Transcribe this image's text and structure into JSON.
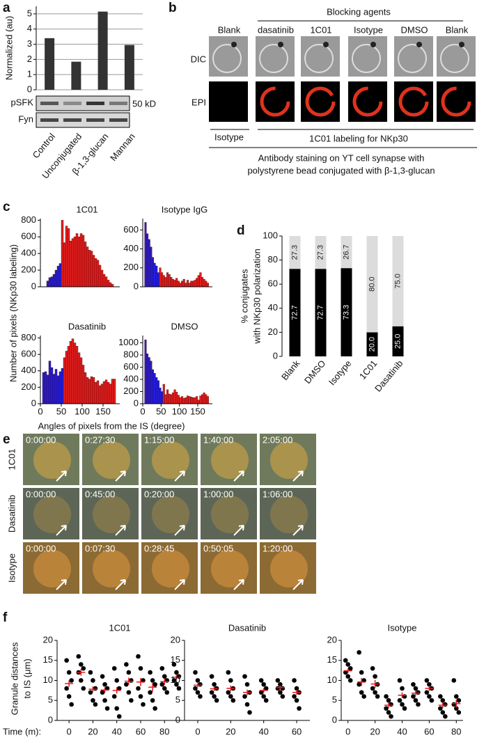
{
  "panel_labels": [
    "a",
    "b",
    "c",
    "d",
    "e",
    "f"
  ],
  "blot": {
    "bands": [
      "pSFK",
      "Fyn"
    ],
    "marker": "50 kD"
  },
  "panel_b": {
    "header": "Blocking agents",
    "columns": [
      "Blank",
      "dasatinib",
      "1C01",
      "Isotype",
      "DMSO",
      "Blank"
    ],
    "rows": [
      "DIC",
      "EPI"
    ],
    "footer": [
      "Isotype",
      "1C01 labeling for NKp30"
    ],
    "caption": [
      "Antibody staining on YT cell synapse with",
      "polystyrene bead conjugated with β-1,3-glucan"
    ]
  },
  "panel_c": {
    "ylabel": "Number of pixels (NKp30 labeling)",
    "xlabel": "Angles of pixels from the IS (degree)"
  },
  "panel_e": {
    "rows": [
      {
        "label": "1C01",
        "times": [
          "0:00:00",
          "0:27:30",
          "1:15:00",
          "1:40:00",
          "2:05:00"
        ]
      },
      {
        "label": "Dasatinib",
        "times": [
          "0:00:00",
          "0:45:00",
          "0:20:00",
          "1:00:00",
          "1:06:00"
        ]
      },
      {
        "label": "Isotype",
        "times": [
          "0:00:00",
          "0:07:30",
          "0:28:45",
          "0:50:05",
          "1:20:00"
        ]
      }
    ]
  },
  "panel_f": {
    "ylabel": [
      "Granule distances",
      "to IS (μm)"
    ],
    "xlabel": "Time (m):"
  },
  "chart_data": [
    {
      "type": "bar",
      "ylabel": "Normalized (au)",
      "categories": [
        "Control",
        "Unconjugated",
        "β-1,3-glucan",
        "Mannan"
      ],
      "values": [
        3.4,
        1.85,
        5.15,
        2.95
      ],
      "color": "#333333",
      "ylim": [
        0,
        5.5
      ],
      "yticks": [
        0,
        1,
        2,
        3,
        4,
        5
      ],
      "grid": true
    },
    {
      "type": "histogram",
      "title": "1C01",
      "xlim": [
        0,
        190
      ],
      "ylim": [
        0,
        820
      ],
      "yticks": [
        0,
        200,
        400,
        600,
        800
      ],
      "series": [
        {
          "color": "#1f1fe6",
          "bins": [
            15,
            20,
            25,
            30,
            35,
            40,
            45,
            50
          ],
          "counts": [
            70,
            110,
            120,
            150,
            200,
            250,
            280
          ]
        },
        {
          "color": "#e61e1e",
          "bins": [
            50,
            55,
            60,
            65,
            70,
            75,
            80,
            85,
            90,
            95,
            100,
            105,
            110,
            115,
            120,
            125,
            130,
            135,
            140,
            145,
            150,
            155,
            160,
            165,
            170,
            175
          ],
          "counts": [
            800,
            530,
            730,
            700,
            550,
            580,
            600,
            640,
            600,
            640,
            620,
            540,
            480,
            440,
            430,
            380,
            340,
            320,
            260,
            200,
            150,
            120,
            80,
            50,
            30
          ]
        }
      ]
    },
    {
      "type": "histogram",
      "title": "Isotype IgG",
      "xlim": [
        0,
        190
      ],
      "ylim": [
        0,
        720
      ],
      "yticks": [
        0,
        200,
        400,
        600
      ],
      "series": [
        {
          "color": "#1f1fe6",
          "bins": [
            5,
            10,
            15,
            20,
            25,
            30,
            35,
            40,
            45
          ],
          "counts": [
            680,
            560,
            500,
            420,
            310,
            250,
            220,
            150
          ]
        },
        {
          "color": "#e61e1e",
          "bins": [
            45,
            50,
            55,
            60,
            65,
            70,
            75,
            80,
            85,
            90,
            95,
            100,
            105,
            110,
            115,
            120,
            125,
            130,
            135,
            140,
            145,
            150,
            155,
            160,
            165,
            170,
            175,
            180
          ],
          "counts": [
            200,
            150,
            120,
            100,
            150,
            130,
            100,
            80,
            70,
            90,
            60,
            40,
            60,
            80,
            40,
            70,
            40,
            60,
            60,
            70,
            90,
            120,
            150,
            100,
            80,
            60,
            40
          ]
        }
      ]
    },
    {
      "type": "histogram",
      "title": "Dasatinib",
      "xlim": [
        0,
        190
      ],
      "ylim": [
        0,
        830
      ],
      "yticks": [
        0,
        200,
        400,
        600,
        800
      ],
      "xticks": [
        0,
        50,
        100,
        150
      ],
      "series": [
        {
          "color": "#1f1fe6",
          "bins": [
            5,
            10,
            15,
            20,
            25,
            30,
            35,
            40,
            45,
            50,
            55
          ],
          "counts": [
            380,
            390,
            350,
            520,
            440,
            360,
            420,
            340,
            390,
            430
          ]
        },
        {
          "color": "#e61e1e",
          "bins": [
            55,
            60,
            65,
            70,
            75,
            80,
            85,
            90,
            95,
            100,
            105,
            110,
            115,
            120,
            125,
            130,
            135,
            140,
            145,
            150,
            155,
            160,
            165,
            170,
            175,
            180
          ],
          "counts": [
            560,
            640,
            700,
            760,
            790,
            740,
            700,
            620,
            560,
            470,
            380,
            320,
            300,
            330,
            320,
            260,
            280,
            220,
            240,
            270,
            290,
            260,
            240,
            300,
            300
          ]
        }
      ]
    },
    {
      "type": "histogram",
      "title": "DMSO",
      "xlim": [
        0,
        190
      ],
      "ylim": [
        0,
        1120
      ],
      "yticks": [
        0,
        200,
        400,
        600,
        800,
        1000
      ],
      "xticks": [
        0,
        50,
        100,
        150
      ],
      "series": [
        {
          "color": "#1f1fe6",
          "bins": [
            5,
            10,
            15,
            20,
            25,
            30,
            35,
            40,
            45,
            50,
            55
          ],
          "counts": [
            1050,
            820,
            760,
            700,
            560,
            500,
            430,
            380,
            260,
            200
          ]
        },
        {
          "color": "#e61e1e",
          "bins": [
            55,
            60,
            65,
            70,
            75,
            80,
            85,
            90,
            95,
            100,
            105,
            110,
            115,
            120,
            125,
            130,
            135,
            140,
            145,
            150,
            155,
            160,
            165,
            170,
            175,
            180
          ],
          "counts": [
            320,
            150,
            230,
            160,
            150,
            180,
            230,
            190,
            140,
            100,
            120,
            90,
            100,
            130,
            120,
            110,
            100,
            100,
            120,
            60,
            130,
            150,
            180,
            150,
            120
          ]
        }
      ]
    },
    {
      "type": "stacked_bar",
      "ylabel": [
        "% conjugates",
        "with NKp30 polarization"
      ],
      "categories": [
        "Blank",
        "DMSO",
        "Isotype",
        "1C01",
        "Dasatinib"
      ],
      "ylim": [
        0,
        100
      ],
      "yticks": [
        0,
        20,
        40,
        60,
        80,
        100
      ],
      "series": [
        {
          "color": "#000000",
          "values": [
            72.7,
            72.7,
            73.3,
            20.0,
            25.0
          ],
          "value_labels": [
            "72.7",
            "72.7",
            "73.3",
            "20.0",
            "25.0"
          ]
        },
        {
          "color": "#dcdcdc",
          "values": [
            27.3,
            27.3,
            26.7,
            80.0,
            75.0
          ],
          "value_labels": [
            "27.3",
            "27.3",
            "26.7",
            "80.0",
            "75.0"
          ]
        }
      ]
    },
    {
      "type": "dot",
      "title": "1C01",
      "xlim": [
        -10,
        95
      ],
      "xticks": [
        0,
        20,
        40,
        60,
        80
      ],
      "ylim": [
        0,
        20
      ],
      "yticks": [
        0,
        5,
        10,
        15,
        20
      ],
      "color": "#000000",
      "mean_color": "#e31a1c",
      "groups": [
        {
          "x": 0,
          "values": [
            15,
            12,
            10,
            8,
            6,
            4
          ],
          "mean": 9.2,
          "error": 0.8
        },
        {
          "x": 10,
          "values": [
            16,
            14,
            13,
            12,
            10,
            8
          ],
          "mean": 12,
          "error": 0.8
        },
        {
          "x": 20,
          "values": [
            12,
            10,
            8,
            7,
            5,
            4
          ],
          "mean": 7.8,
          "error": 0.7
        },
        {
          "x": 30,
          "values": [
            11,
            9,
            8,
            7,
            5,
            3
          ],
          "mean": 7.6,
          "error": 0.7
        },
        {
          "x": 40,
          "values": [
            13,
            10,
            8,
            6,
            3,
            1
          ],
          "mean": 7.5,
          "error": 0.8
        },
        {
          "x": 50,
          "values": [
            14,
            12,
            10,
            9,
            7,
            5
          ],
          "mean": 9.8,
          "error": 0.9
        },
        {
          "x": 60,
          "values": [
            16,
            13,
            10,
            8,
            6,
            4
          ],
          "mean": 9.6,
          "error": 1
        },
        {
          "x": 70,
          "values": [
            12,
            10,
            9,
            7,
            5,
            3
          ],
          "mean": 8.3,
          "error": 1.1
        },
        {
          "x": 80,
          "values": [
            13,
            11,
            10,
            9,
            8,
            7
          ],
          "mean": 9.7,
          "error": 0.8
        },
        {
          "x": 90,
          "values": [
            14,
            12,
            11,
            10,
            9,
            8
          ],
          "mean": 10.8,
          "error": 0.6
        }
      ]
    },
    {
      "type": "dot",
      "title": "Dasatinib",
      "xlim": [
        -8,
        68
      ],
      "xticks": [
        0,
        20,
        40,
        60
      ],
      "ylim": [
        0,
        20
      ],
      "yticks": [
        0,
        5,
        10,
        15,
        20
      ],
      "color": "#000000",
      "mean_color": "#e31a1c",
      "groups": [
        {
          "x": 0,
          "values": [
            12,
            10,
            9,
            8,
            7,
            6
          ],
          "mean": 8.8,
          "error": 0.5
        },
        {
          "x": 10,
          "values": [
            11,
            9,
            8,
            7,
            6,
            5
          ],
          "mean": 7.9,
          "error": 0.5
        },
        {
          "x": 20,
          "values": [
            12,
            10,
            8,
            7,
            6,
            5
          ],
          "mean": 8.0,
          "error": 0.7
        },
        {
          "x": 30,
          "values": [
            11,
            9,
            7,
            6,
            4,
            2
          ],
          "mean": 7.0,
          "error": 0.7
        },
        {
          "x": 40,
          "values": [
            10,
            9,
            8,
            7,
            6,
            5
          ],
          "mean": 7.5,
          "error": 0.6
        },
        {
          "x": 50,
          "values": [
            10,
            9,
            8,
            8,
            7,
            6
          ],
          "mean": 8.2,
          "error": 0.5
        },
        {
          "x": 60,
          "values": [
            10,
            8,
            7,
            6,
            5,
            3
          ],
          "mean": 7.0,
          "error": 0.6
        }
      ]
    },
    {
      "type": "dot",
      "title": "Isotype",
      "xlim": [
        -5,
        85
      ],
      "xticks": [
        0,
        20,
        40,
        60,
        80
      ],
      "ylim": [
        0,
        20
      ],
      "yticks": [
        0,
        5,
        10,
        15,
        20
      ],
      "color": "#000000",
      "mean_color": "#e31a1c",
      "groups": [
        {
          "x": 0,
          "values": [
            15,
            14,
            13,
            12,
            11,
            10
          ],
          "mean": 12.4,
          "error": 0.6
        },
        {
          "x": 10,
          "values": [
            17,
            12,
            10,
            9,
            7,
            6
          ],
          "mean": 9.6,
          "error": 1
        },
        {
          "x": 20,
          "values": [
            13,
            11,
            9,
            8,
            7,
            6
          ],
          "mean": 9.1,
          "error": 1
        },
        {
          "x": 30,
          "values": [
            6,
            5,
            4,
            3,
            2,
            1
          ],
          "mean": 3.8,
          "error": 0.7
        },
        {
          "x": 40,
          "values": [
            10,
            8,
            6,
            5,
            4,
            3
          ],
          "mean": 6.3,
          "error": 0.7
        },
        {
          "x": 50,
          "values": [
            9,
            8,
            7,
            6,
            5,
            4
          ],
          "mean": 6.8,
          "error": 0.6
        },
        {
          "x": 60,
          "values": [
            10,
            9,
            8,
            7,
            6,
            5
          ],
          "mean": 8.0,
          "error": 0.6
        },
        {
          "x": 70,
          "values": [
            6,
            5,
            4,
            3,
            2,
            1
          ],
          "mean": 3.8,
          "error": 0.7
        },
        {
          "x": 80,
          "values": [
            10,
            6,
            5,
            4,
            3,
            2
          ],
          "mean": 4.2,
          "error": 1
        }
      ]
    }
  ]
}
